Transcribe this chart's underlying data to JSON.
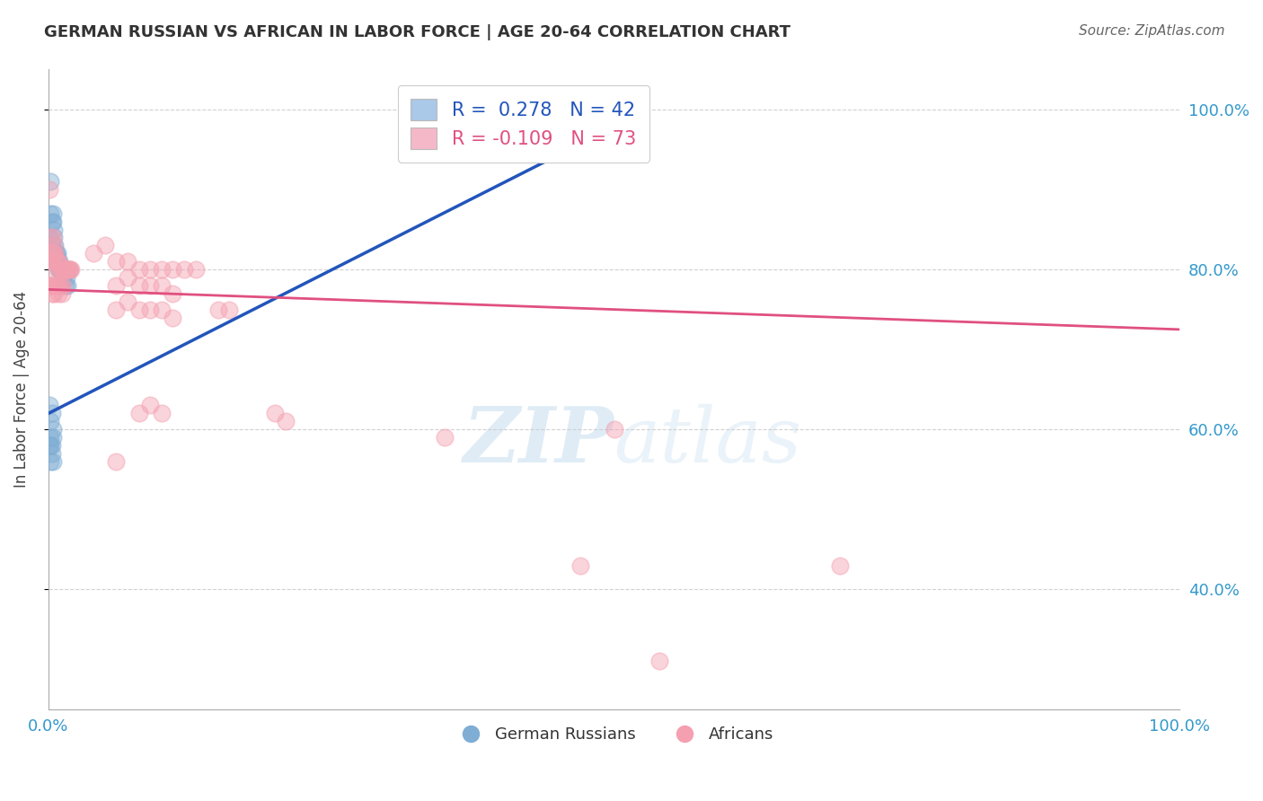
{
  "title": "GERMAN RUSSIAN VS AFRICAN IN LABOR FORCE | AGE 20-64 CORRELATION CHART",
  "source": "Source: ZipAtlas.com",
  "ylabel": "In Labor Force | Age 20-64",
  "background_color": "#ffffff",
  "grid_color": "#cccccc",
  "blue_R": 0.278,
  "blue_N": 42,
  "pink_R": -0.109,
  "pink_N": 73,
  "blue_color": "#7fadd4",
  "pink_color": "#f4a0b0",
  "blue_line_color": "#2255bb",
  "pink_line_color": "#e05080",
  "legend_blue_color": "#aac8e8",
  "legend_pink_color": "#f5b8c8",
  "blue_points": [
    [
      0.001,
      0.84
    ],
    [
      0.002,
      0.87
    ],
    [
      0.002,
      0.91
    ],
    [
      0.003,
      0.86
    ],
    [
      0.003,
      0.83
    ],
    [
      0.004,
      0.86
    ],
    [
      0.004,
      0.87
    ],
    [
      0.005,
      0.84
    ],
    [
      0.005,
      0.85
    ],
    [
      0.005,
      0.82
    ],
    [
      0.006,
      0.82
    ],
    [
      0.006,
      0.83
    ],
    [
      0.007,
      0.81
    ],
    [
      0.007,
      0.815
    ],
    [
      0.007,
      0.82
    ],
    [
      0.008,
      0.81
    ],
    [
      0.008,
      0.82
    ],
    [
      0.009,
      0.81
    ],
    [
      0.009,
      0.8
    ],
    [
      0.01,
      0.81
    ],
    [
      0.01,
      0.8
    ],
    [
      0.011,
      0.8
    ],
    [
      0.012,
      0.8
    ],
    [
      0.013,
      0.8
    ],
    [
      0.013,
      0.79
    ],
    [
      0.014,
      0.795
    ],
    [
      0.015,
      0.78
    ],
    [
      0.016,
      0.79
    ],
    [
      0.017,
      0.78
    ],
    [
      0.018,
      0.8
    ],
    [
      0.001,
      0.63
    ],
    [
      0.002,
      0.61
    ],
    [
      0.003,
      0.62
    ],
    [
      0.004,
      0.6
    ],
    [
      0.002,
      0.58
    ],
    [
      0.003,
      0.57
    ],
    [
      0.004,
      0.59
    ],
    [
      0.002,
      0.56
    ],
    [
      0.003,
      0.58
    ],
    [
      0.004,
      0.56
    ],
    [
      0.001,
      0.58
    ],
    [
      0.002,
      0.59
    ]
  ],
  "pink_points": [
    [
      0.001,
      0.9
    ],
    [
      0.002,
      0.84
    ],
    [
      0.003,
      0.82
    ],
    [
      0.004,
      0.84
    ],
    [
      0.005,
      0.83
    ],
    [
      0.001,
      0.81
    ],
    [
      0.002,
      0.82
    ],
    [
      0.003,
      0.81
    ],
    [
      0.004,
      0.8
    ],
    [
      0.005,
      0.82
    ],
    [
      0.006,
      0.82
    ],
    [
      0.007,
      0.81
    ],
    [
      0.008,
      0.81
    ],
    [
      0.009,
      0.81
    ],
    [
      0.01,
      0.8
    ],
    [
      0.011,
      0.8
    ],
    [
      0.012,
      0.8
    ],
    [
      0.013,
      0.8
    ],
    [
      0.014,
      0.8
    ],
    [
      0.015,
      0.8
    ],
    [
      0.016,
      0.8
    ],
    [
      0.017,
      0.8
    ],
    [
      0.018,
      0.8
    ],
    [
      0.019,
      0.8
    ],
    [
      0.02,
      0.8
    ],
    [
      0.001,
      0.78
    ],
    [
      0.002,
      0.78
    ],
    [
      0.003,
      0.77
    ],
    [
      0.004,
      0.78
    ],
    [
      0.005,
      0.77
    ],
    [
      0.006,
      0.78
    ],
    [
      0.007,
      0.78
    ],
    [
      0.008,
      0.78
    ],
    [
      0.009,
      0.77
    ],
    [
      0.01,
      0.78
    ],
    [
      0.011,
      0.78
    ],
    [
      0.012,
      0.77
    ],
    [
      0.013,
      0.78
    ],
    [
      0.04,
      0.82
    ],
    [
      0.05,
      0.83
    ],
    [
      0.06,
      0.81
    ],
    [
      0.07,
      0.81
    ],
    [
      0.08,
      0.8
    ],
    [
      0.09,
      0.8
    ],
    [
      0.1,
      0.8
    ],
    [
      0.11,
      0.8
    ],
    [
      0.12,
      0.8
    ],
    [
      0.13,
      0.8
    ],
    [
      0.06,
      0.78
    ],
    [
      0.07,
      0.79
    ],
    [
      0.08,
      0.78
    ],
    [
      0.09,
      0.78
    ],
    [
      0.1,
      0.78
    ],
    [
      0.11,
      0.77
    ],
    [
      0.06,
      0.75
    ],
    [
      0.07,
      0.76
    ],
    [
      0.08,
      0.75
    ],
    [
      0.09,
      0.75
    ],
    [
      0.1,
      0.75
    ],
    [
      0.11,
      0.74
    ],
    [
      0.15,
      0.75
    ],
    [
      0.16,
      0.75
    ],
    [
      0.08,
      0.62
    ],
    [
      0.09,
      0.63
    ],
    [
      0.1,
      0.62
    ],
    [
      0.06,
      0.56
    ],
    [
      0.2,
      0.62
    ],
    [
      0.21,
      0.61
    ],
    [
      0.35,
      0.59
    ],
    [
      0.5,
      0.6
    ],
    [
      0.47,
      0.43
    ],
    [
      0.7,
      0.43
    ],
    [
      0.54,
      0.31
    ]
  ],
  "xlim": [
    0.0,
    1.0
  ],
  "ylim": [
    0.25,
    1.05
  ],
  "blue_line_x0": 0.0,
  "blue_line_y0": 0.62,
  "blue_line_x1": 0.53,
  "blue_line_y1": 1.0,
  "pink_line_x0": 0.0,
  "pink_line_y0": 0.775,
  "pink_line_x1": 1.0,
  "pink_line_y1": 0.725
}
